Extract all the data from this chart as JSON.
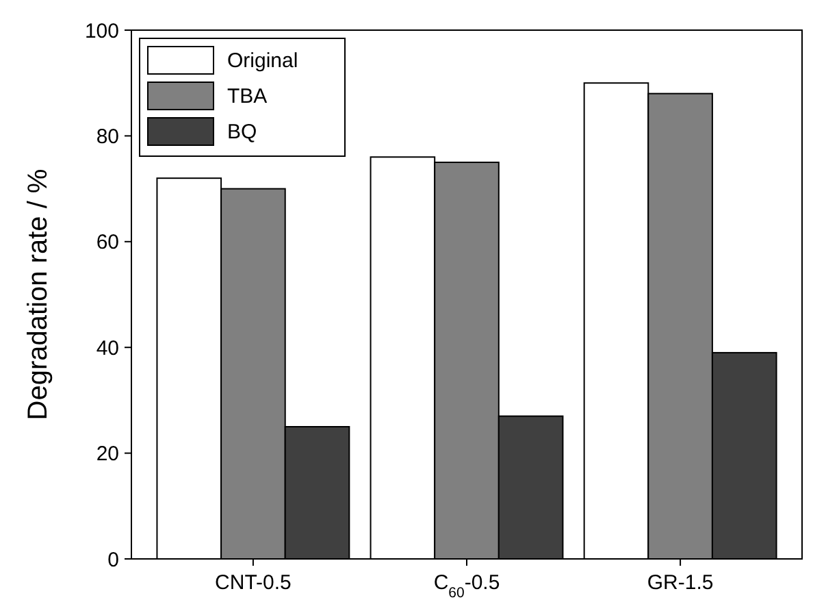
{
  "chart_data": {
    "type": "bar",
    "ylabel": "Degradation rate / %",
    "categories": [
      "CNT-0.5",
      "C$_{60}$-0.5",
      "GR-1.5"
    ],
    "series": [
      {
        "name": "Original",
        "color": "#ffffff",
        "values": [
          72,
          76,
          90
        ]
      },
      {
        "name": "TBA",
        "color": "#808080",
        "values": [
          70,
          75,
          88
        ]
      },
      {
        "name": "BQ",
        "color": "#404040",
        "values": [
          25,
          27,
          39
        ]
      }
    ],
    "ylim": [
      0,
      100
    ],
    "yticks": [
      0,
      20,
      40,
      60,
      80,
      100
    ],
    "grid": false,
    "legend": "top left"
  }
}
